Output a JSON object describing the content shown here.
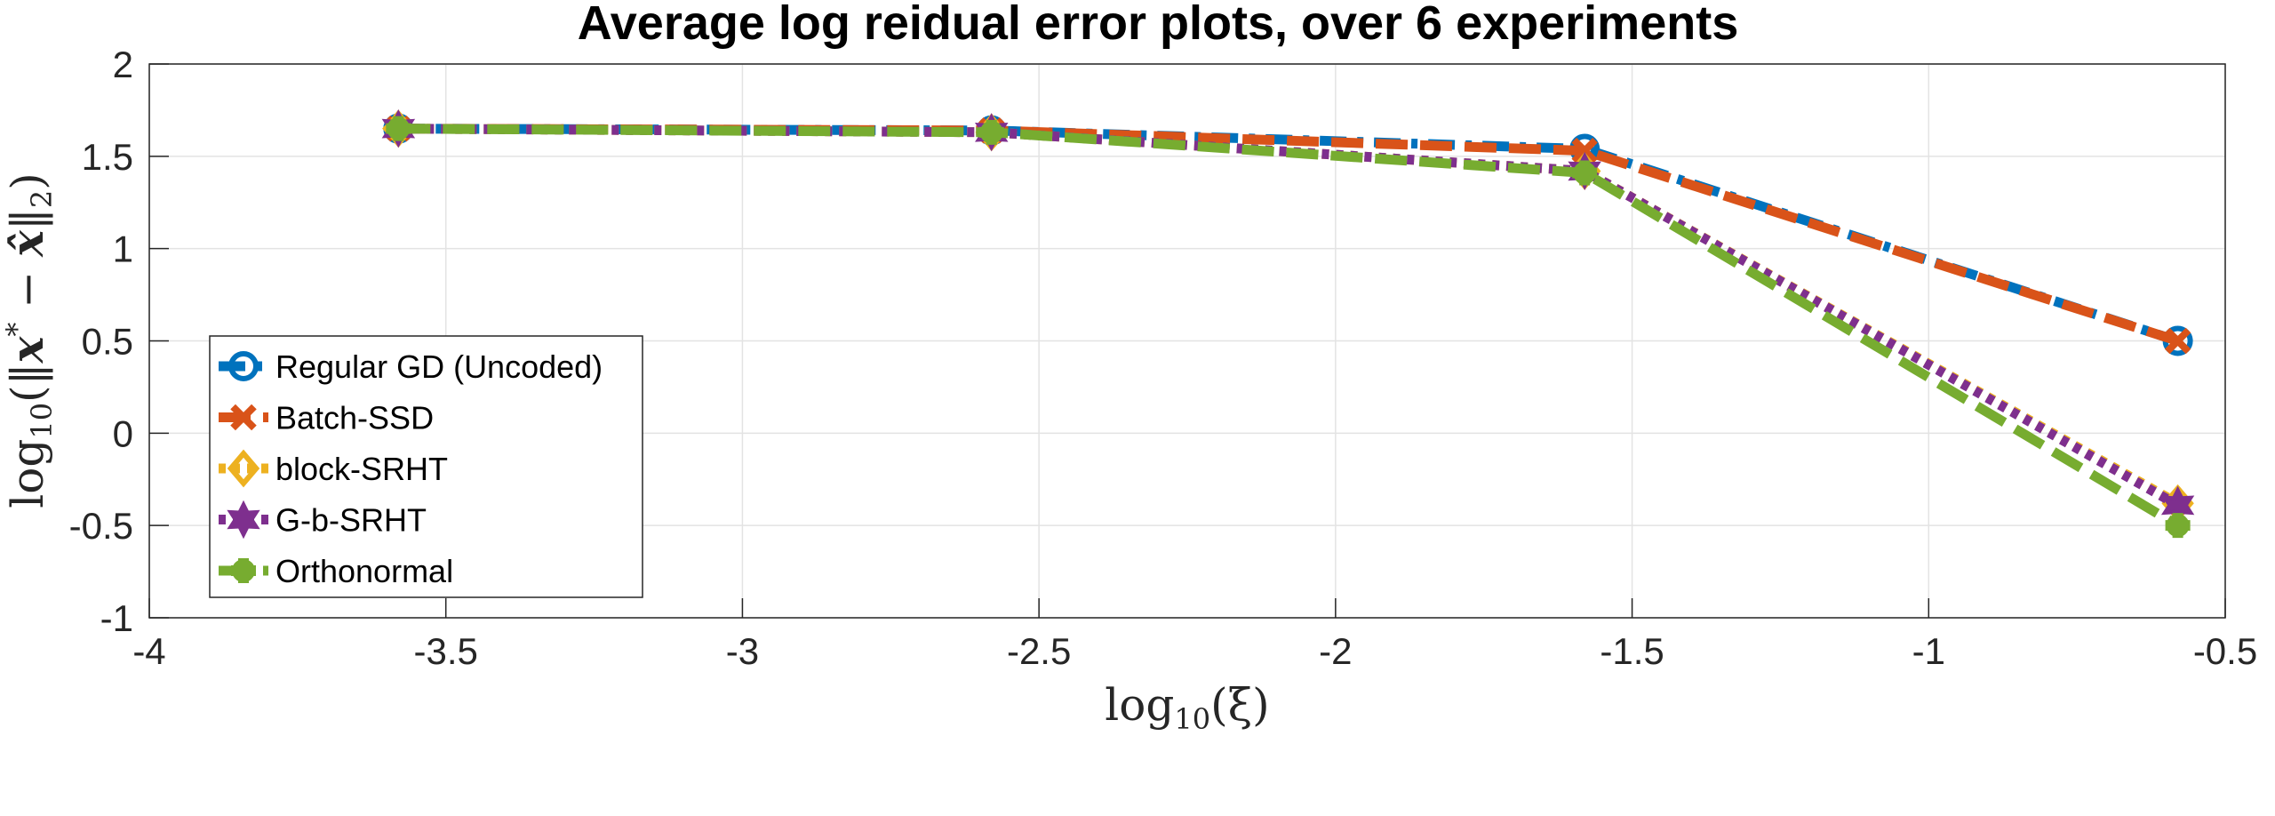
{
  "chart_data": {
    "type": "line",
    "title": "Average log reidual error plots, over 6 experiments",
    "xlabel": "log10(ξ)",
    "ylabel": "log10(‖x* − x̂‖2)",
    "xlim": [
      -4,
      -0.5
    ],
    "ylim": [
      -1,
      2
    ],
    "xticks": [
      -4,
      -3.5,
      -3,
      -2.5,
      -2,
      -1.5,
      -1,
      -0.5
    ],
    "yticks": [
      -1,
      -0.5,
      0,
      0.5,
      1,
      1.5,
      2
    ],
    "grid": true,
    "legend_position": "lower-left",
    "x": [
      -3.58,
      -2.58,
      -1.58,
      -0.58
    ],
    "series": [
      {
        "name": "Regular GD (Uncoded)",
        "values": [
          1.65,
          1.64,
          1.54,
          0.5
        ],
        "color": "#0072BD",
        "dash": "dashdot",
        "marker": "circle"
      },
      {
        "name": "Batch-SSD",
        "values": [
          1.65,
          1.64,
          1.53,
          0.5
        ],
        "color": "#D95319",
        "dash": "dashed",
        "marker": "x"
      },
      {
        "name": "block-SRHT",
        "values": [
          1.65,
          1.63,
          1.42,
          -0.38
        ],
        "color": "#EDB120",
        "dash": "dotted",
        "marker": "diamond"
      },
      {
        "name": "G-b-SRHT",
        "values": [
          1.65,
          1.63,
          1.42,
          -0.39
        ],
        "color": "#7E2F8E",
        "dash": "dotted",
        "marker": "hexagram"
      },
      {
        "name": "Orthonormal",
        "values": [
          1.65,
          1.63,
          1.41,
          -0.5
        ],
        "color": "#77AC30",
        "dash": "dashed",
        "marker": "plus"
      }
    ]
  }
}
